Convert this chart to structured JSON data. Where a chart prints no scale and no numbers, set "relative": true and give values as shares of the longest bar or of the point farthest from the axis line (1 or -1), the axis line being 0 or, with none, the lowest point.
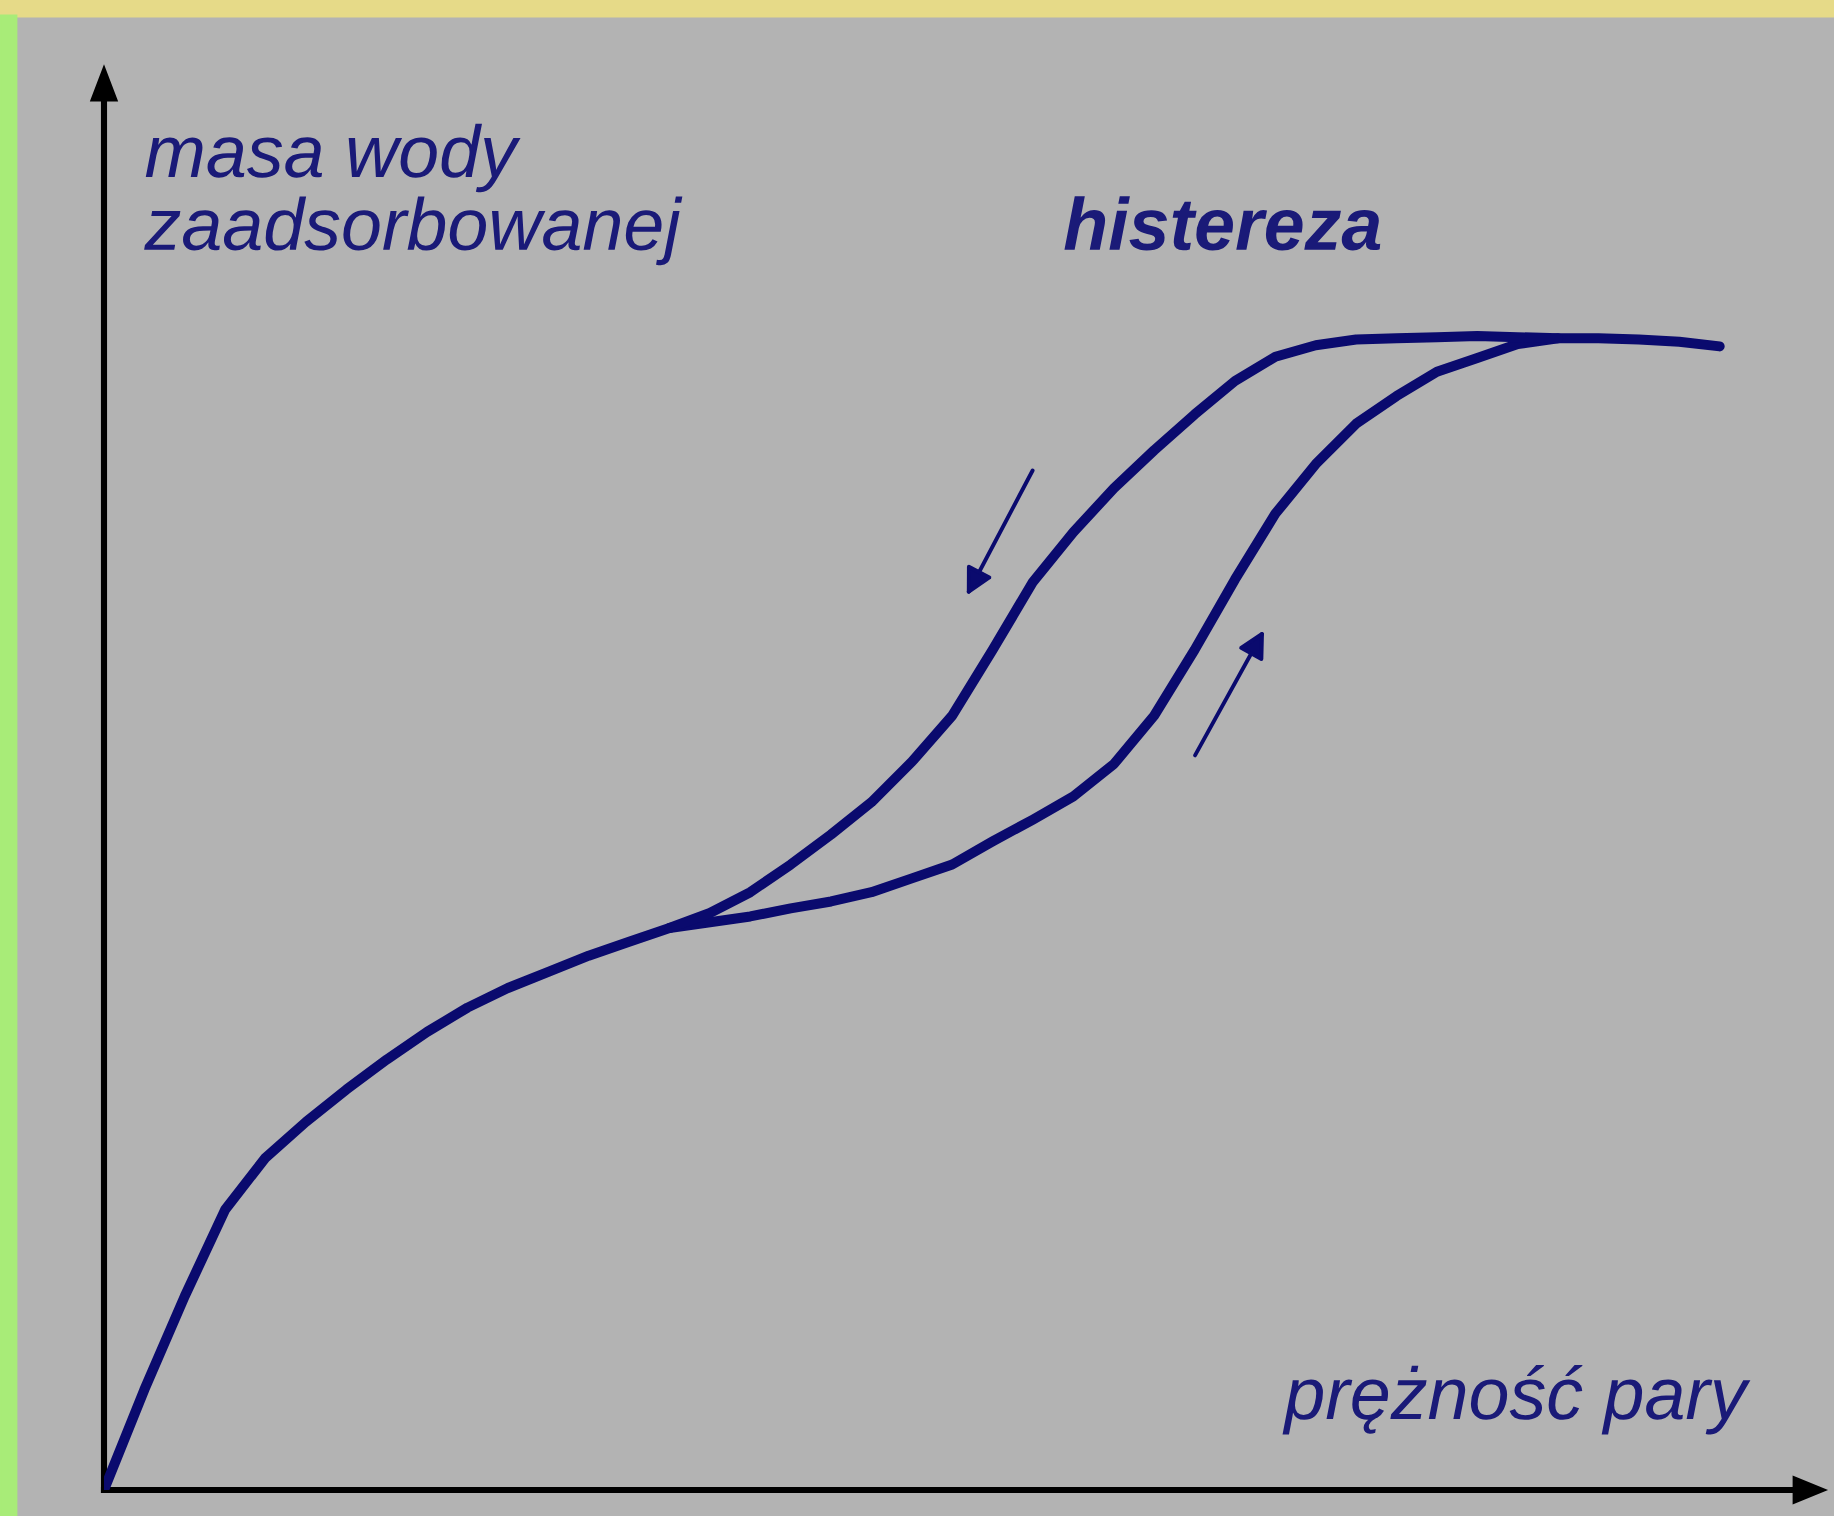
{
  "chart_data": {
    "type": "line",
    "relative": true,
    "xlabel": "prężność pary",
    "ylabel": "masa wody\nzaadsorbowanej",
    "annotations": [
      "histereza"
    ],
    "categories": [
      null,
      null,
      null,
      null,
      null,
      null,
      null,
      null,
      null,
      null,
      null,
      null,
      null,
      null,
      null,
      null,
      null,
      null,
      null,
      null,
      null,
      null,
      null,
      null,
      null,
      null,
      null,
      null,
      null,
      null,
      null,
      null,
      null,
      null,
      null,
      null,
      null,
      null,
      null,
      null,
      null
    ],
    "series": [
      {
        "color": "#0a0a6e",
        "values": [
          0,
          0.087,
          0.168,
          0.243,
          0.288,
          0.319,
          0.347,
          0.373,
          0.397,
          0.418,
          0.435,
          0.449,
          0.463,
          0.475,
          0.487,
          0.492,
          0.497,
          0.504,
          0.51,
          0.518,
          0.53,
          0.542,
          0.562,
          0.581,
          0.601,
          0.629,
          0.671,
          0.728,
          0.789,
          0.846,
          0.889,
          0.924,
          0.948,
          0.969,
          0.981,
          0.993,
          0.998,
          0.998,
          0.997,
          0.995,
          0.991
        ]
      },
      {
        "color": "#0a0a6e",
        "values": [
          null,
          null,
          null,
          null,
          null,
          null,
          null,
          null,
          null,
          null,
          null,
          null,
          null,
          null,
          0.487,
          0.5,
          0.518,
          0.542,
          0.568,
          0.596,
          0.631,
          0.671,
          0.728,
          0.787,
          0.83,
          0.868,
          0.901,
          0.932,
          0.961,
          0.982,
          0.992,
          0.997,
          0.998,
          0.999,
          1.0,
          0.999,
          0.998,
          null,
          null,
          null,
          null
        ]
      }
    ],
    "tick_labels": false,
    "marker": "none",
    "line_style": "solid"
  }
}
